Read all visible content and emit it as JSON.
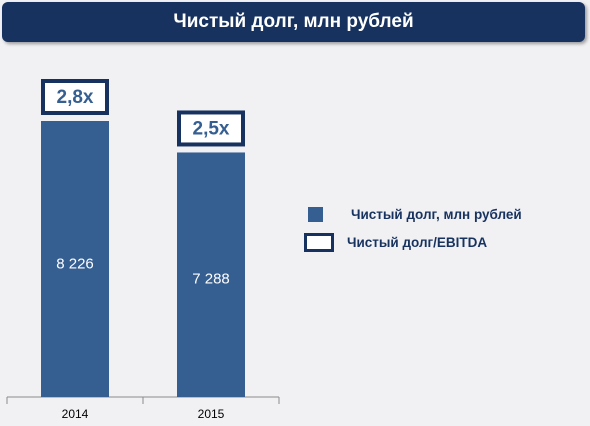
{
  "title": "Чистый долг, млн рублей",
  "legend": {
    "series_label": "Чистый долг, млн рублей",
    "ratio_label": "Чистый долг/EBITDA"
  },
  "colors": {
    "bar": "#355e91",
    "dark": "#17325f",
    "background": "#f1f1f4"
  },
  "chart_data": {
    "type": "bar",
    "title": "Чистый долг, млн рублей",
    "categories": [
      "2014",
      "2015"
    ],
    "series": [
      {
        "name": "Чистый долг, млн рублей",
        "values": [
          8226,
          7288
        ],
        "labels": [
          "8 226",
          "7 288"
        ]
      },
      {
        "name": "Чистый долг/EBITDA",
        "values": [
          2.8,
          2.5
        ],
        "labels": [
          "2,8x",
          "2,5x"
        ]
      }
    ],
    "xlabel": "",
    "ylabel": "",
    "grid": false,
    "legend_position": "right"
  }
}
